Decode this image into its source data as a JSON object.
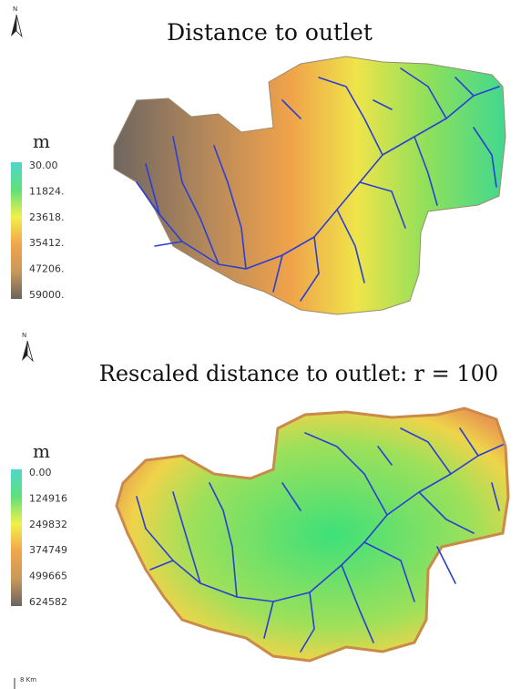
{
  "north_label": "N",
  "scale_label": "8 Km",
  "panels": [
    {
      "title": "Distance to outlet",
      "unit": "m",
      "legend": [
        "30.00",
        "11824.",
        "23618.",
        "35412.",
        "47206.",
        "59000."
      ]
    },
    {
      "title": "Rescaled distance to outlet: r = 100",
      "unit": "m",
      "legend": [
        "0.00",
        "124916",
        "249832",
        "374749",
        "499665",
        "624582"
      ]
    }
  ]
}
